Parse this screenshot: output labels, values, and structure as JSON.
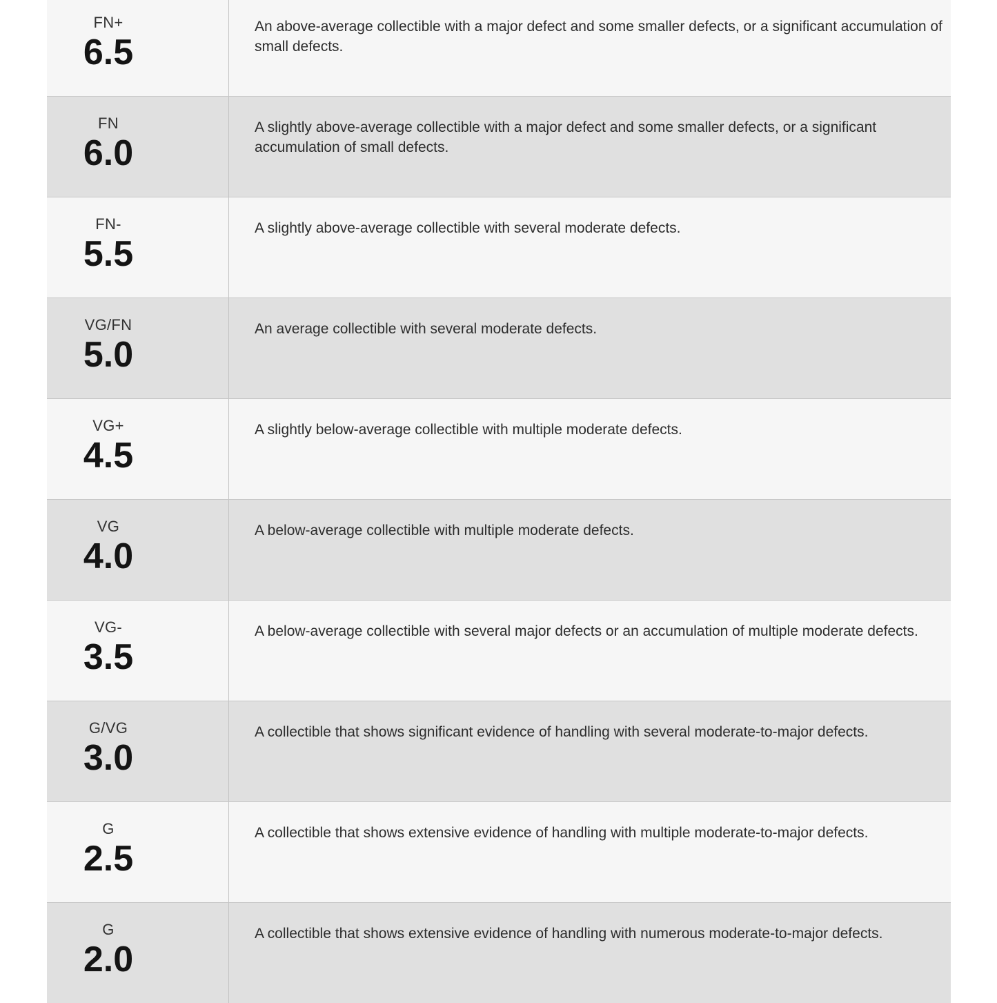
{
  "page": {
    "background": "#ffffff"
  },
  "table": {
    "name": "collectible-grading-scale",
    "colors": {
      "row_light": "#f6f6f6",
      "row_gray": "#e0e0e0",
      "row_border": "#c6c6c6",
      "column_divider": "#c3c3c3",
      "label_text": "#333333",
      "grade_text": "#141414",
      "description_text": "#2d2d2d"
    },
    "columns": [
      "grade",
      "description"
    ],
    "rows": [
      {
        "label": "FN+",
        "grade": "6.5",
        "shade": "light",
        "description": "An above-average collectible with a major defect and some smaller defects, or a significant accumulation of small defects."
      },
      {
        "label": "FN",
        "grade": "6.0",
        "shade": "gray",
        "description": "A slightly above-average collectible with a major defect and some smaller defects, or a significant accumulation of small defects."
      },
      {
        "label": "FN-",
        "grade": "5.5",
        "shade": "light",
        "description": "A slightly above-average collectible with several moderate defects."
      },
      {
        "label": "VG/FN",
        "grade": "5.0",
        "shade": "gray",
        "description": "An average collectible with several moderate defects."
      },
      {
        "label": "VG+",
        "grade": "4.5",
        "shade": "light",
        "description": "A slightly below-average collectible with multiple moderate defects."
      },
      {
        "label": "VG",
        "grade": "4.0",
        "shade": "gray",
        "description": "A below-average collectible with multiple moderate defects."
      },
      {
        "label": "VG-",
        "grade": "3.5",
        "shade": "light",
        "description": "A below-average collectible with several major defects or an accumulation of multiple moderate defects."
      },
      {
        "label": "G/VG",
        "grade": "3.0",
        "shade": "gray",
        "description": "A collectible that shows significant evidence of handling with several moderate-to-major defects."
      },
      {
        "label": "G",
        "grade": "2.5",
        "shade": "light",
        "description": "A collectible that shows extensive evidence of handling with multiple moderate-to-major defects."
      },
      {
        "label": "G",
        "grade": "2.0",
        "shade": "gray",
        "description": "A collectible that shows extensive evidence of handling with numerous moderate-to-major defects."
      }
    ]
  }
}
